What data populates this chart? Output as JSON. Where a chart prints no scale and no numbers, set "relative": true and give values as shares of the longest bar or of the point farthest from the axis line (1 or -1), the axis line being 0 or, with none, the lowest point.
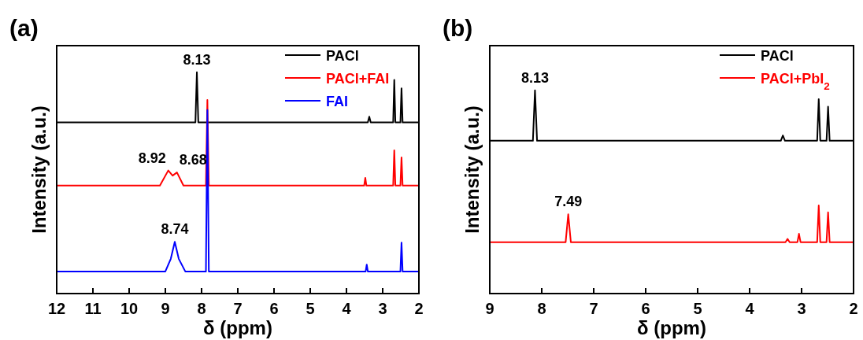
{
  "chart_data": [
    {
      "type": "line",
      "title": "(a)",
      "xlabel": "δ (ppm)",
      "ylabel": "Intensity (a.u.)",
      "relative": true,
      "xlim": [
        12,
        2
      ],
      "xticks": [
        12,
        11,
        10,
        9,
        8,
        7,
        6,
        5,
        4,
        3,
        2
      ],
      "legend": "top right",
      "series": [
        {
          "name": "PACl",
          "color": "#000000",
          "x": [
            12,
            8.17,
            8.13,
            8.09,
            3.41,
            3.37,
            3.33,
            2.71,
            2.68,
            2.65,
            2.51,
            2.48,
            2.45,
            2
          ],
          "values": [
            0.773,
            0.773,
            1.0,
            0.773,
            0.773,
            0.799,
            0.773,
            0.773,
            0.965,
            0.773,
            0.773,
            0.927,
            0.773,
            0.773
          ]
        },
        {
          "name": "PACl+FAI",
          "color": "#ff0000",
          "x": [
            12,
            9.15,
            8.92,
            8.8,
            8.68,
            8.5,
            7.88,
            7.84,
            7.8,
            3.51,
            3.48,
            3.45,
            2.71,
            2.68,
            2.65,
            2.51,
            2.48,
            2.45,
            2
          ],
          "values": [
            0.488,
            0.488,
            0.556,
            0.533,
            0.547,
            0.488,
            0.488,
            0.875,
            0.488,
            0.488,
            0.523,
            0.488,
            0.488,
            0.647,
            0.488,
            0.488,
            0.615,
            0.488,
            0.488
          ]
        },
        {
          "name": "FAI",
          "color": "#0000ff",
          "x": [
            12,
            9.0,
            8.85,
            8.74,
            8.63,
            8.45,
            7.88,
            7.84,
            7.8,
            3.47,
            3.44,
            3.41,
            2.51,
            2.48,
            2.45,
            2
          ],
          "values": [
            0.1,
            0.1,
            0.157,
            0.234,
            0.157,
            0.1,
            0.1,
            0.829,
            0.1,
            0.1,
            0.131,
            0.1,
            0.1,
            0.23,
            0.1,
            0.1
          ]
        }
      ],
      "annotations": [
        {
          "text": "8.13",
          "x": 8.13,
          "y": 1.0
        },
        {
          "text": "8.92",
          "x": 8.92,
          "y": 0.556
        },
        {
          "text": "8.68",
          "x": 8.68,
          "y": 0.547
        },
        {
          "text": "8.74",
          "x": 8.74,
          "y": 0.234
        }
      ]
    },
    {
      "type": "line",
      "title": "(b)",
      "xlabel": "δ (ppm)",
      "ylabel": "Intensity (a.u.)",
      "relative": true,
      "xlim": [
        9,
        2
      ],
      "xticks": [
        9,
        8,
        7,
        6,
        5,
        4,
        3,
        2
      ],
      "legend": "top right",
      "series": [
        {
          "name": "PACl",
          "color": "#000000",
          "x": [
            9,
            8.17,
            8.13,
            8.09,
            3.4,
            3.36,
            3.32,
            2.7,
            2.67,
            2.64,
            2.52,
            2.49,
            2.46,
            2
          ],
          "values": [
            0.752,
            0.752,
            1.0,
            0.752,
            0.752,
            0.778,
            0.752,
            0.752,
            0.957,
            0.752,
            0.752,
            0.92,
            0.752,
            0.752
          ]
        },
        {
          "name": "PACl+PbI$_{2}$",
          "color": "#ff0000",
          "x": [
            9,
            7.54,
            7.49,
            7.44,
            3.31,
            3.27,
            3.23,
            3.08,
            3.05,
            3.02,
            2.7,
            2.67,
            2.64,
            2.52,
            2.49,
            2.46,
            2
          ],
          "values": [
            0.253,
            0.253,
            0.39,
            0.253,
            0.253,
            0.269,
            0.253,
            0.253,
            0.294,
            0.253,
            0.253,
            0.434,
            0.253,
            0.253,
            0.4,
            0.253,
            0.253
          ]
        }
      ],
      "annotations": [
        {
          "text": "8.13",
          "x": 8.13,
          "y": 1.0
        },
        {
          "text": "7.49",
          "x": 7.49,
          "y": 0.39
        }
      ]
    }
  ]
}
